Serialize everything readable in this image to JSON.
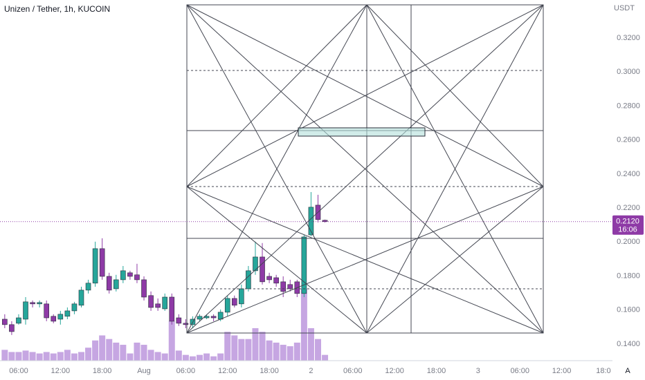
{
  "chart_data": {
    "type": "candlestick",
    "title": "Unizen / Tether, 1h, KUCOIN",
    "y_unit": "USDT",
    "x": [
      4,
      5,
      6,
      7,
      8,
      9,
      10,
      11,
      12,
      13,
      14,
      15,
      16,
      17,
      18,
      19,
      20,
      21,
      22,
      23,
      24,
      25,
      26,
      27,
      28,
      29,
      30,
      31,
      32,
      33,
      34,
      35,
      36,
      37,
      38,
      39,
      40,
      41,
      42,
      43,
      44,
      45,
      46,
      47,
      48,
      49,
      50
    ],
    "open": [
      0.1546,
      0.1514,
      0.1522,
      0.1546,
      0.1644,
      0.1636,
      0.1636,
      0.1563,
      0.1546,
      0.1563,
      0.1595,
      0.1628,
      0.1717,
      0.1758,
      0.1961,
      0.1798,
      0.1725,
      0.1778,
      0.1819,
      0.1807,
      0.1778,
      0.1685,
      0.1636,
      0.1607,
      0.1676,
      0.1554,
      0.1522,
      0.1514,
      0.1546,
      0.1554,
      0.1563,
      0.1546,
      0.1587,
      0.1668,
      0.1636,
      0.1725,
      0.1831,
      0.1912,
      0.1798,
      0.179,
      0.1766,
      0.175,
      0.1766,
      0.1697,
      0.2042,
      0.2217,
      0.2128
    ],
    "high": [
      0.1575,
      0.1534,
      0.1575,
      0.1676,
      0.1656,
      0.1656,
      0.1656,
      0.1575,
      0.1595,
      0.1615,
      0.1648,
      0.1737,
      0.1778,
      0.2002,
      0.2022,
      0.1819,
      0.1807,
      0.1859,
      0.1831,
      0.1872,
      0.1798,
      0.1709,
      0.1668,
      0.1697,
      0.1697,
      0.1575,
      0.1546,
      0.1563,
      0.1575,
      0.1575,
      0.1575,
      0.1603,
      0.1685,
      0.1685,
      0.175,
      0.1859,
      0.2002,
      0.1994,
      0.1819,
      0.1807,
      0.1798,
      0.1778,
      0.1778,
      0.2042,
      0.2294,
      0.2278,
      0.2132
    ],
    "low": [
      0.1493,
      0.1453,
      0.1514,
      0.1514,
      0.1615,
      0.1615,
      0.1534,
      0.1522,
      0.1514,
      0.1546,
      0.1575,
      0.1615,
      0.1697,
      0.1737,
      0.1778,
      0.1697,
      0.1709,
      0.1758,
      0.1778,
      0.1758,
      0.1656,
      0.1595,
      0.1595,
      0.1595,
      0.1514,
      0.1506,
      0.1493,
      0.1493,
      0.1534,
      0.1546,
      0.1534,
      0.1534,
      0.1563,
      0.1615,
      0.1615,
      0.1709,
      0.1807,
      0.175,
      0.1758,
      0.1737,
      0.1676,
      0.1709,
      0.1676,
      0.1676,
      0.2034,
      0.2115,
      0.2115
    ],
    "close": [
      0.1514,
      0.1473,
      0.1554,
      0.1648,
      0.1636,
      0.1644,
      0.1554,
      0.1534,
      0.1575,
      0.1595,
      0.1636,
      0.1717,
      0.1758,
      0.1961,
      0.1798,
      0.1717,
      0.1778,
      0.1831,
      0.1798,
      0.1778,
      0.1676,
      0.1615,
      0.1615,
      0.1676,
      0.1534,
      0.1522,
      0.1514,
      0.1546,
      0.1563,
      0.1563,
      0.1554,
      0.1587,
      0.1668,
      0.1628,
      0.1725,
      0.1831,
      0.1912,
      0.1766,
      0.1778,
      0.1758,
      0.1709,
      0.1725,
      0.1697,
      0.203,
      0.2205,
      0.2132,
      0.212
    ],
    "volume": [
      15,
      12,
      12,
      14,
      12,
      10,
      12,
      10,
      12,
      15,
      10,
      12,
      18,
      28,
      35,
      30,
      25,
      22,
      10,
      25,
      22,
      15,
      12,
      10,
      55,
      14,
      8,
      6,
      8,
      10,
      6,
      10,
      40,
      35,
      30,
      30,
      45,
      40,
      28,
      25,
      22,
      20,
      25,
      100,
      45,
      30,
      8
    ],
    "volume_lim": [
      0,
      500
    ],
    "up_color": "#26a69a",
    "down_color": "#8e3aa6",
    "volume_color": "#b388d8",
    "xlim": [
      3.32,
      91.3
    ],
    "xticks": [
      {
        "value": 6,
        "label": "06:00"
      },
      {
        "value": 12,
        "label": "12:00"
      },
      {
        "value": 18,
        "label": "18:00"
      },
      {
        "value": 24,
        "label": "Aug"
      },
      {
        "value": 30,
        "label": "06:00"
      },
      {
        "value": 36,
        "label": "12:00"
      },
      {
        "value": 42,
        "label": "18:00"
      },
      {
        "value": 48,
        "label": "2"
      },
      {
        "value": 54,
        "label": "06:00"
      },
      {
        "value": 60,
        "label": "12:00"
      },
      {
        "value": 66,
        "label": "18:00"
      },
      {
        "value": 72,
        "label": "3"
      },
      {
        "value": 78,
        "label": "06:00"
      },
      {
        "value": 84,
        "label": "12:00"
      },
      {
        "value": 90,
        "label": "18:0"
      }
    ],
    "ylim": [
      0.1302,
      0.3424
    ],
    "yticks": [
      {
        "value": 0.14,
        "label": "0.1400"
      },
      {
        "value": 0.16,
        "label": "0.1600"
      },
      {
        "value": 0.18,
        "label": "0.1800"
      },
      {
        "value": 0.2,
        "label": "0.2000"
      },
      {
        "value": 0.22,
        "label": "0.2200"
      },
      {
        "value": 0.24,
        "label": "0.2400"
      },
      {
        "value": 0.26,
        "label": "0.2600"
      },
      {
        "value": 0.28,
        "label": "0.2800"
      },
      {
        "value": 0.3,
        "label": "0.3000"
      },
      {
        "value": 0.32,
        "label": "0.3200"
      }
    ],
    "last_price": {
      "value": 0.212,
      "label": "0.2120"
    },
    "countdown": "16:06",
    "scale_mode": "A"
  }
}
